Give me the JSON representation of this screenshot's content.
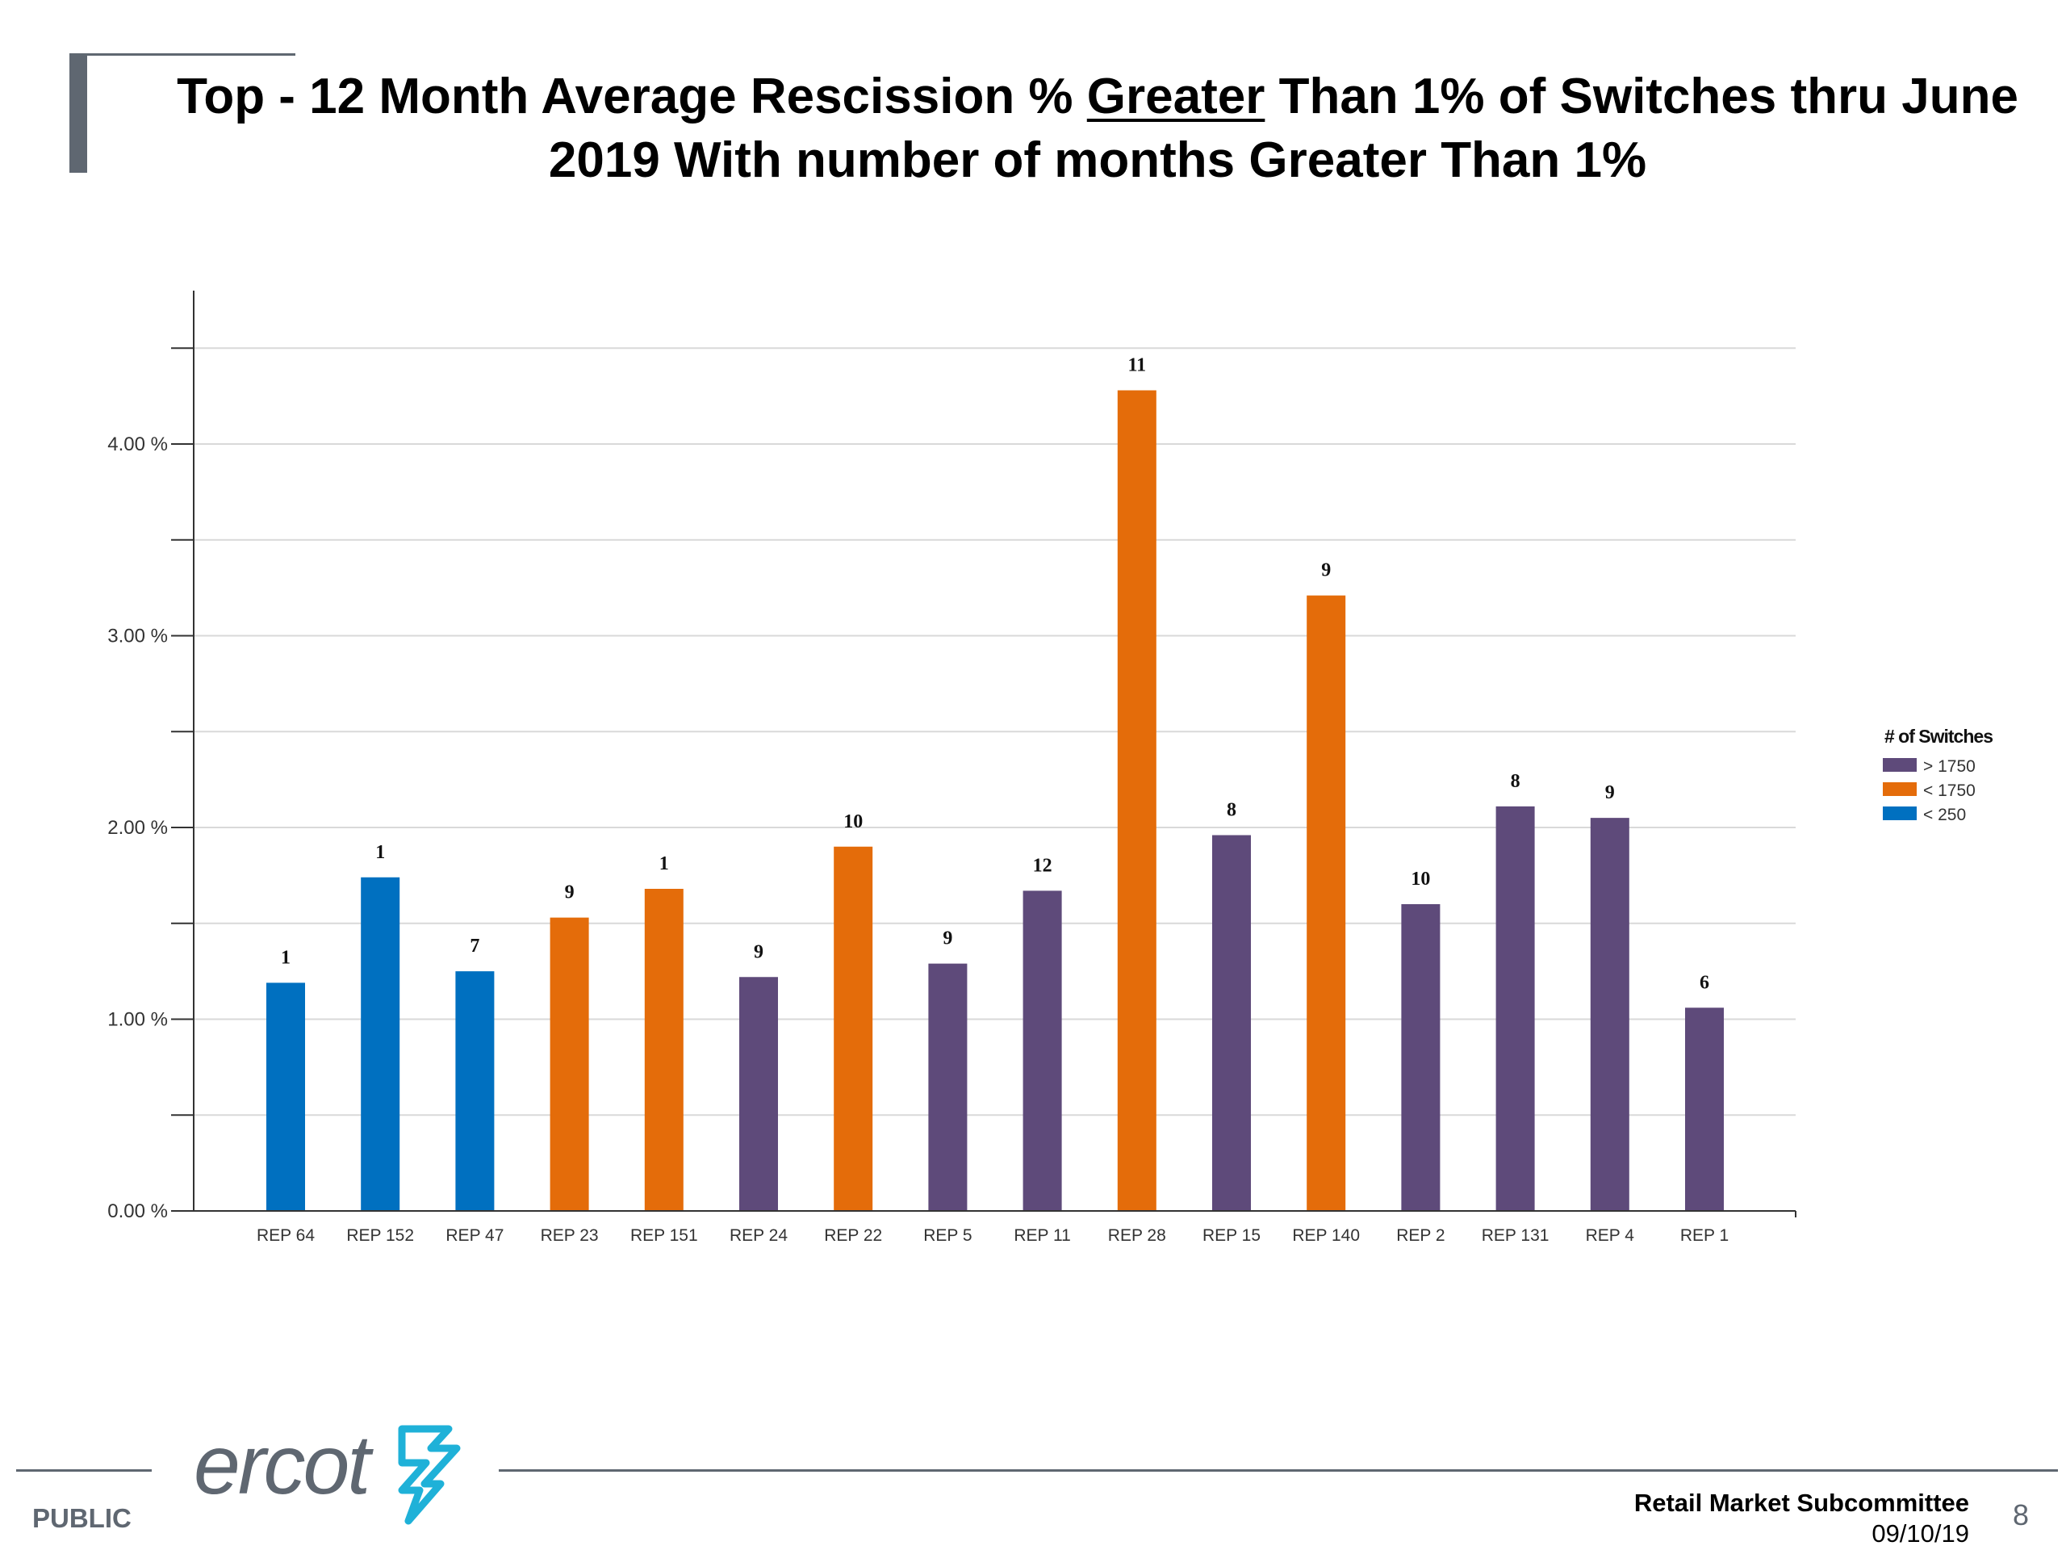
{
  "slide": {
    "title_part1": "Top - 12 Month Average Rescission % ",
    "title_underlined": "Greater",
    "title_part2": " Than 1% of Switches thru June 2019 With number of months Greater Than 1%"
  },
  "footer": {
    "classification": "PUBLIC",
    "logo_text": "ercot",
    "committee": "Retail Market Subcommittee",
    "date": "09/10/19",
    "page_number": "8"
  },
  "chart_data": {
    "type": "bar",
    "title": "",
    "xlabel": "",
    "ylabel": "",
    "ylim": [
      0,
      4.8
    ],
    "y_tick_labels": [
      "0.00 %",
      "1.00 %",
      "2.00 %",
      "3.00 %",
      "4.00 %"
    ],
    "y_tick_values": [
      0,
      1,
      2,
      3,
      4
    ],
    "grid": true,
    "legend_title": "# of Switches",
    "legend_position": "right",
    "legend": [
      {
        "key": "gt1750",
        "label": "> 1750",
        "color": "#5e4a7a"
      },
      {
        "key": "lt1750",
        "label": "< 1750",
        "color": "#e46c0a"
      },
      {
        "key": "lt250",
        "label": "< 250",
        "color": "#0070c0"
      }
    ],
    "categories": [
      "REP 64",
      "REP 152",
      "REP 47",
      "REP 23",
      "REP 151",
      "REP 24",
      "REP 22",
      "REP 5",
      "REP 11",
      "REP 28",
      "REP 15",
      "REP 140",
      "REP 2",
      "REP 131",
      "REP 4",
      "REP 1"
    ],
    "values": [
      1.19,
      1.74,
      1.25,
      1.53,
      1.68,
      1.22,
      1.9,
      1.29,
      1.67,
      4.28,
      1.96,
      3.21,
      1.6,
      2.11,
      2.05,
      1.06
    ],
    "groups": [
      "lt250",
      "lt250",
      "lt250",
      "lt1750",
      "lt1750",
      "gt1750",
      "lt1750",
      "gt1750",
      "gt1750",
      "lt1750",
      "gt1750",
      "lt1750",
      "gt1750",
      "gt1750",
      "gt1750",
      "gt1750"
    ],
    "data_labels": [
      "1",
      "1",
      "7",
      "9",
      "1",
      "9",
      "10",
      "9",
      "12",
      "11",
      "8",
      "9",
      "10",
      "8",
      "9",
      "6"
    ]
  }
}
